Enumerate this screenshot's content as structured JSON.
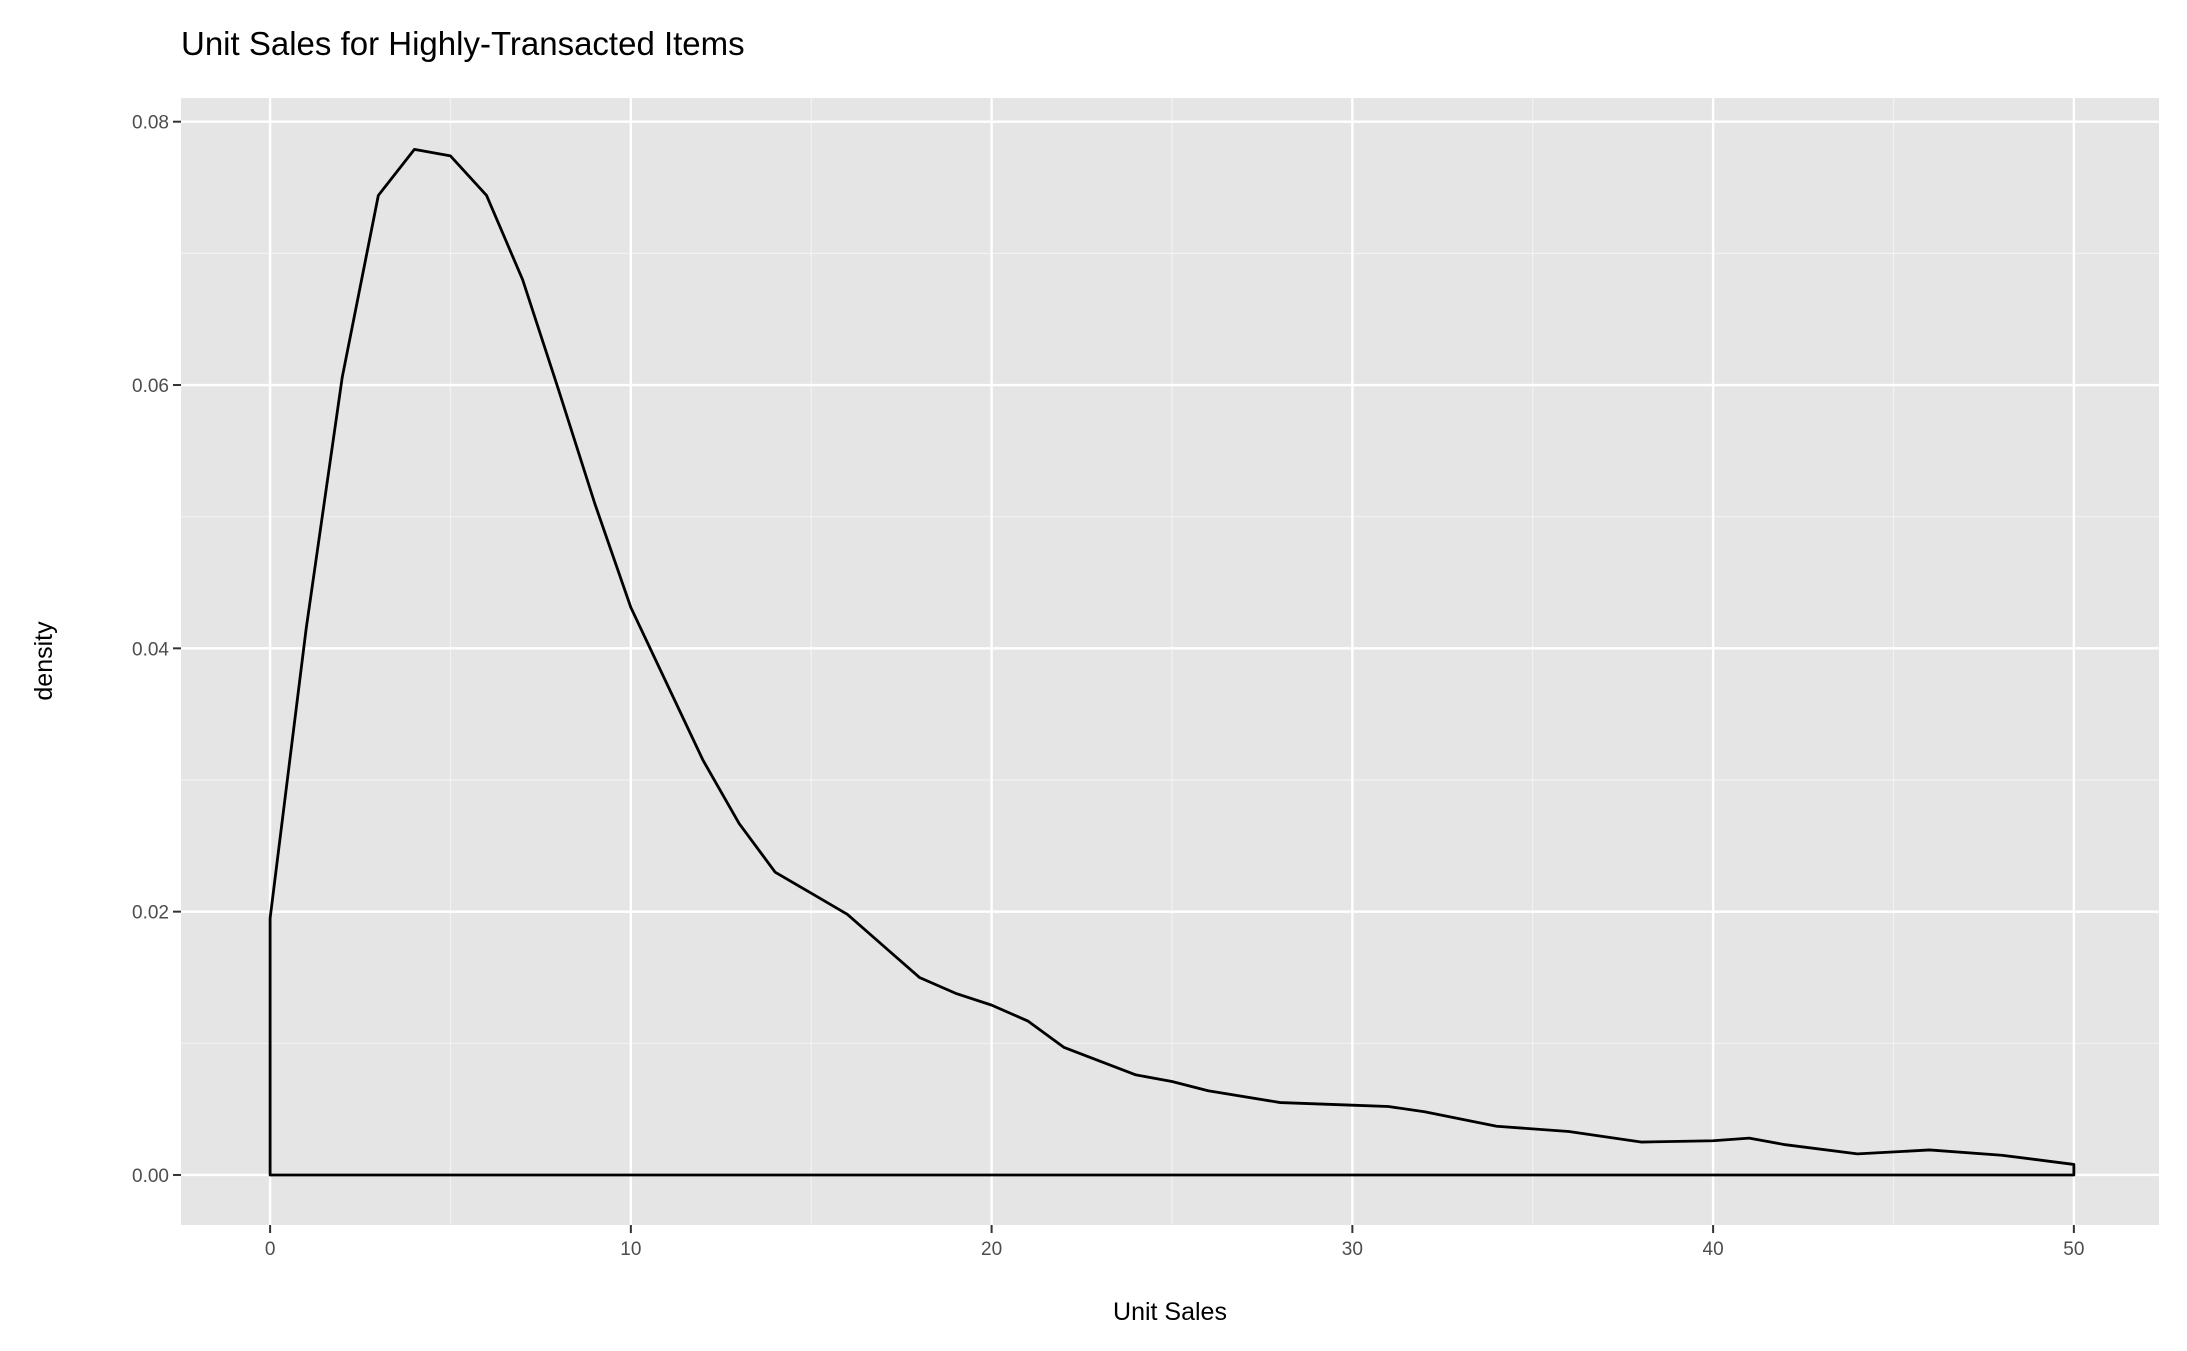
{
  "chart_data": {
    "type": "area",
    "title": "Unit Sales for Highly-Transacted Items",
    "x_label": "Unit Sales",
    "y_label": "density",
    "x": [
      0,
      0,
      1,
      2,
      3,
      4,
      5,
      6,
      7,
      8,
      9,
      10,
      11,
      12,
      13,
      14,
      15,
      16,
      17,
      18,
      19,
      20,
      21,
      22,
      24,
      25,
      26,
      28,
      30,
      31,
      32,
      34,
      36,
      38,
      40,
      41,
      42,
      44,
      46,
      48,
      50,
      50
    ],
    "values": [
      0,
      0.0195,
      0.0415,
      0.0606,
      0.0744,
      0.0779,
      0.0774,
      0.0744,
      0.068,
      0.0596,
      0.051,
      0.0431,
      0.0373,
      0.0315,
      0.0267,
      0.023,
      0.0214,
      0.0198,
      0.0174,
      0.015,
      0.0138,
      0.0129,
      0.0117,
      0.0097,
      0.0076,
      0.0071,
      0.0064,
      0.0055,
      0.0053,
      0.0052,
      0.0048,
      0.0037,
      0.0033,
      0.0025,
      0.0026,
      0.0028,
      0.0023,
      0.0016,
      0.0019,
      0.0015,
      0.0008,
      0
    ],
    "color": "#000000",
    "xlim": [
      -2.47,
      52.36
    ],
    "ylim": [
      -0.0038,
      0.0818
    ],
    "xticks": [
      0,
      10,
      20,
      30,
      40,
      50
    ],
    "yticks": [
      {
        "value": 0,
        "label": "0.00"
      },
      0.02,
      0.04,
      0.06,
      0.08
    ],
    "x_minor_ticks": [
      5,
      15,
      25,
      35,
      45
    ],
    "y_minor_ticks": [
      0.01,
      0.03,
      0.05,
      0.07
    ],
    "grid": true
  }
}
